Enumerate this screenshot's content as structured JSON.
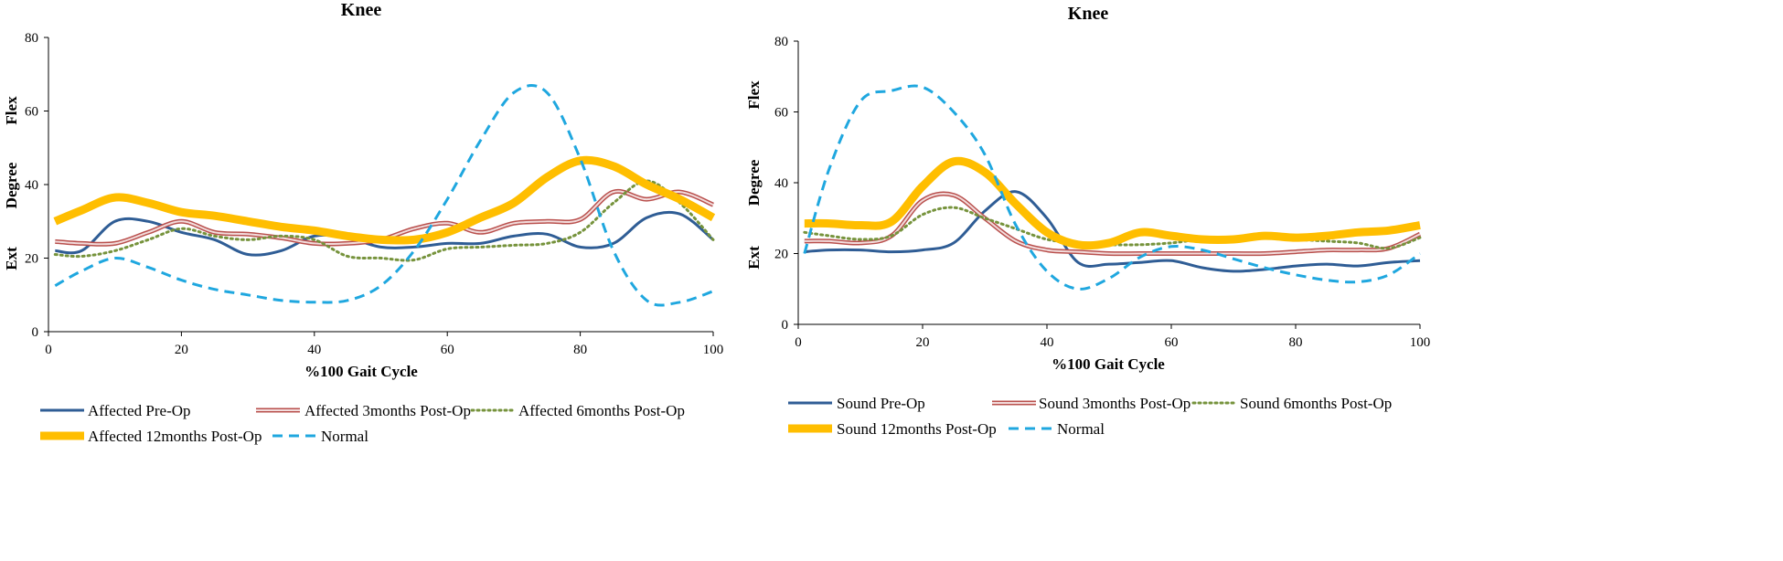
{
  "colors": {
    "pre_op": "#2F5D95",
    "post3_fill": "#F2DCDC",
    "post3_edge": "#B9504D",
    "post6": "#76933C",
    "post12": "#FFBE00",
    "normal": "#1FA7DF"
  },
  "chart_data": [
    {
      "type": "line",
      "title": "Knee",
      "xlabel": "%100 Gait Cycle",
      "ylabel": "Degree",
      "ylabel_top": "Flex",
      "ylabel_bottom": "Ext",
      "xlim": [
        0,
        100
      ],
      "ylim": [
        0,
        80
      ],
      "xticks": [
        0,
        20,
        40,
        60,
        80,
        100
      ],
      "yticks": [
        0,
        20,
        40,
        60,
        80
      ],
      "grid": false,
      "legend_position": "bottom",
      "x": [
        1,
        5,
        10,
        15,
        20,
        25,
        30,
        35,
        40,
        45,
        50,
        55,
        60,
        65,
        70,
        75,
        80,
        85,
        90,
        95,
        100
      ],
      "series": [
        {
          "name": "Affected Pre-Op",
          "style": "pre_op",
          "values": [
            22,
            22,
            30,
            30,
            27,
            25,
            21,
            22,
            26,
            25.5,
            23,
            23,
            24,
            24,
            26,
            26.5,
            23,
            24,
            31,
            32,
            25
          ]
        },
        {
          "name": "Affected 3months Post-Op",
          "style": "post3",
          "values": [
            24.5,
            24,
            24,
            27,
            30,
            27,
            26.5,
            25.5,
            24,
            24,
            25,
            28,
            29.5,
            27,
            29.5,
            30,
            30.5,
            38,
            36,
            38,
            34.5
          ]
        },
        {
          "name": "Affected 6months Post-Op",
          "style": "post6",
          "values": [
            21,
            20.5,
            22,
            25,
            28,
            26,
            25,
            26,
            25,
            20.5,
            20,
            19.5,
            22.5,
            23,
            23.5,
            24,
            27,
            35,
            41,
            35,
            25
          ]
        },
        {
          "name": "Affected 12months Post-Op",
          "style": "post12",
          "values": [
            30,
            33,
            36.5,
            35,
            32.5,
            31.5,
            30,
            28.5,
            27.5,
            26,
            25,
            25,
            27,
            31,
            35,
            42,
            46.5,
            45,
            40,
            36,
            31
          ]
        },
        {
          "name": "Normal",
          "style": "normal",
          "values": [
            12.5,
            16.5,
            20,
            17.5,
            14,
            11.5,
            10,
            8.5,
            8,
            8.5,
            12.5,
            22,
            36,
            52,
            65,
            65,
            47,
            22,
            8.5,
            8,
            11
          ]
        }
      ]
    },
    {
      "type": "line",
      "title": "Knee",
      "xlabel": "%100 Gait Cycle",
      "ylabel": "Degree",
      "ylabel_top": "Flex",
      "ylabel_bottom": "Ext",
      "xlim": [
        0,
        100
      ],
      "ylim": [
        0,
        80
      ],
      "xticks": [
        0,
        20,
        40,
        60,
        80,
        100
      ],
      "yticks": [
        0,
        20,
        40,
        60,
        80
      ],
      "grid": false,
      "legend_position": "bottom",
      "x": [
        1,
        5,
        10,
        15,
        20,
        25,
        30,
        35,
        40,
        45,
        50,
        55,
        60,
        65,
        70,
        75,
        80,
        85,
        90,
        95,
        100
      ],
      "series": [
        {
          "name": "Sound Pre-Op",
          "style": "pre_op",
          "values": [
            20.5,
            21,
            21,
            20.5,
            21,
            23,
            32,
            37.5,
            30,
            17.5,
            17,
            17.5,
            18,
            16,
            15,
            15.5,
            16.5,
            17,
            16.5,
            17.5,
            18
          ]
        },
        {
          "name": "Sound 3months Post-Op",
          "style": "post3",
          "values": [
            23.5,
            23.5,
            23,
            25,
            35,
            36.5,
            30,
            23.5,
            21,
            20.5,
            20,
            20,
            20,
            20,
            20,
            20,
            20.5,
            21,
            21,
            21.5,
            25.5
          ]
        },
        {
          "name": "Sound 6months Post-Op",
          "style": "post6",
          "values": [
            26,
            25,
            24,
            25,
            31,
            33,
            30,
            27,
            24,
            23,
            22.5,
            22.5,
            23,
            24,
            24,
            24.5,
            24,
            23.5,
            23,
            21.5,
            24.5
          ]
        },
        {
          "name": "Sound 12months Post-Op",
          "style": "post12",
          "values": [
            28.5,
            28.5,
            28,
            29,
            39,
            46,
            43,
            34,
            26,
            22.5,
            23,
            26,
            25,
            24,
            24,
            25,
            24.5,
            25,
            26,
            26.5,
            28
          ]
        },
        {
          "name": "Normal",
          "style": "normal",
          "values": [
            20,
            44,
            63,
            66,
            67,
            60,
            48,
            28,
            15,
            10,
            13,
            19,
            22,
            21,
            18.5,
            16,
            14,
            12.5,
            12,
            14,
            20
          ]
        }
      ]
    }
  ]
}
